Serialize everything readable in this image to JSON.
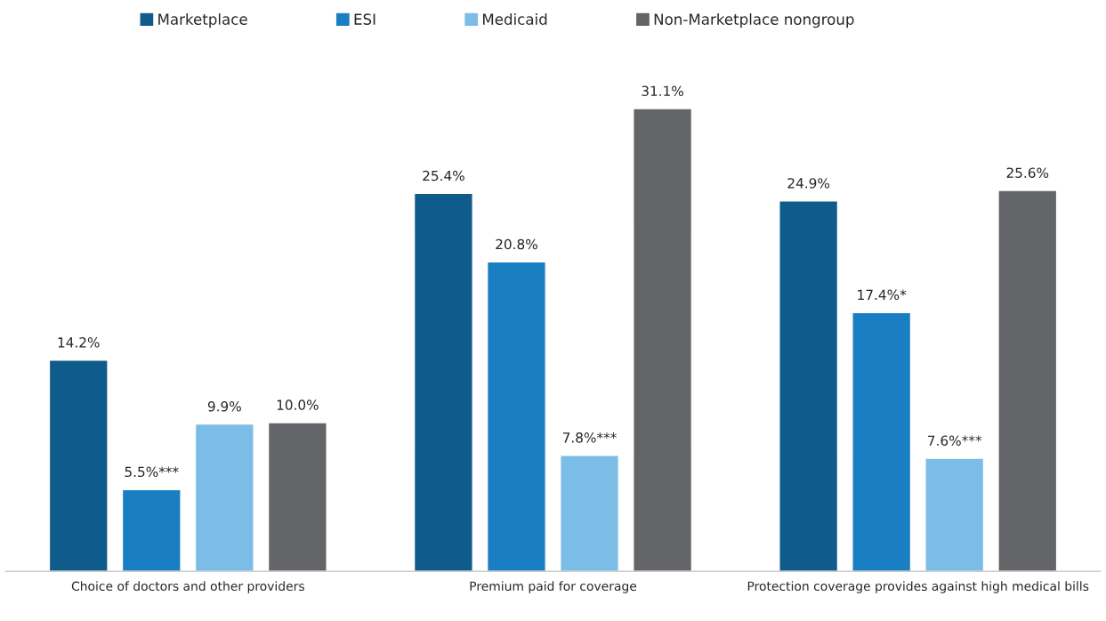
{
  "chart_data": {
    "type": "bar",
    "categories": [
      "Choice of doctors and other providers",
      "Premium paid for coverage",
      "Protection coverage provides against high medical bills"
    ],
    "series": [
      {
        "name": "Marketplace",
        "color": "#0f5b8c",
        "values": [
          14.2,
          25.4,
          24.9
        ],
        "value_labels": [
          "14.2%",
          "25.4%",
          "24.9%"
        ]
      },
      {
        "name": "ESI",
        "color": "#1a7ec3",
        "values": [
          5.5,
          20.8,
          17.4
        ],
        "value_labels": [
          "5.5%***",
          "20.8%",
          "17.4%*"
        ]
      },
      {
        "name": "Medicaid",
        "color": "#7bbde6",
        "values": [
          9.9,
          7.8,
          7.6
        ],
        "value_labels": [
          "9.9%",
          "7.8%***",
          "7.6%***"
        ]
      },
      {
        "name": "Non-Marketplace nongroup",
        "color": "#646568",
        "values": [
          10.0,
          31.1,
          25.6
        ],
        "value_labels": [
          "10.0%",
          "31.1%",
          "25.6%"
        ]
      }
    ],
    "legend": "top",
    "grid": false
  }
}
